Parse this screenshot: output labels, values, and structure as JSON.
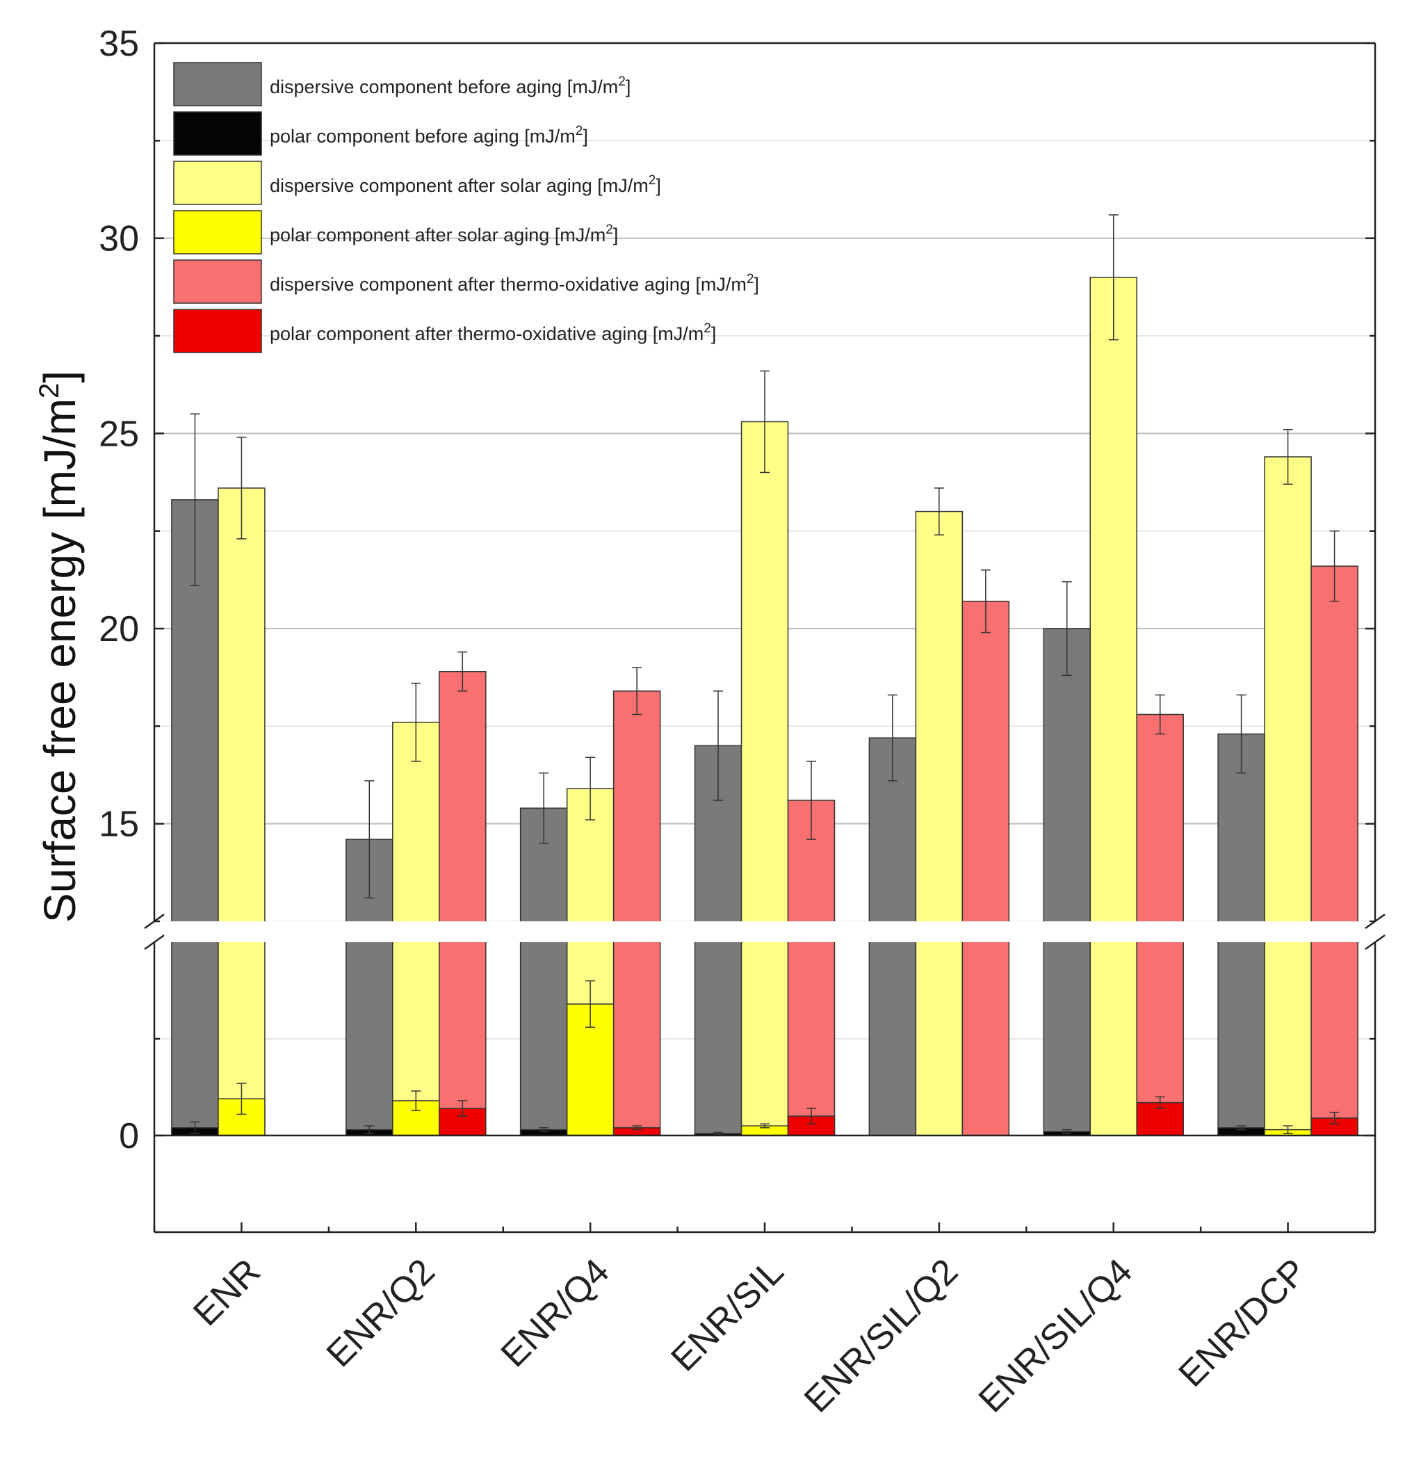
{
  "chart_data": {
    "type": "bar",
    "title": "",
    "xlabel": "",
    "ylabel": "Surface free energy [mJ/m",
    "ylabel_sup": "2",
    "ylabel_suffix": "]",
    "ylim": [
      -2.5,
      35
    ],
    "axis_break": {
      "from": 5,
      "to": 12.5
    },
    "yticks": [
      0,
      15,
      20,
      25,
      30,
      35
    ],
    "ytick_labels": [
      "0",
      "15",
      "20",
      "25",
      "30",
      "35"
    ],
    "grid": true,
    "categories": [
      "ENR",
      "ENR/Q2",
      "ENR/Q4",
      "ENR/SIL",
      "ENR/SIL/Q2",
      "ENR/SIL/Q4",
      "ENR/DCP"
    ],
    "legend_position": "top-left",
    "series": [
      {
        "name": "dispersive component before aging [mJ/m",
        "name_sup": "2",
        "name_suffix": "]",
        "color": "#7a7a7a",
        "values": [
          23.3,
          14.6,
          15.4,
          17.0,
          17.2,
          20.0,
          17.3
        ],
        "errors": [
          2.2,
          1.5,
          0.9,
          1.4,
          1.1,
          1.2,
          1.0
        ]
      },
      {
        "name": "polar component before aging [mJ/m",
        "name_sup": "2",
        "name_suffix": "]",
        "color": "#050505",
        "values": [
          0.2,
          0.15,
          0.15,
          0.05,
          0.0,
          0.1,
          0.2
        ],
        "errors": [
          0.15,
          0.1,
          0.05,
          0.03,
          0.0,
          0.05,
          0.05
        ]
      },
      {
        "name": "dispersive component after solar aging [mJ/m",
        "name_sup": "2",
        "name_suffix": "]",
        "color": "#ffff88",
        "values": [
          23.6,
          17.6,
          15.9,
          25.3,
          23.0,
          29.0,
          24.4
        ],
        "errors": [
          1.3,
          1.0,
          0.8,
          1.3,
          0.6,
          1.6,
          0.7
        ]
      },
      {
        "name": "polar component after solar aging [mJ/m",
        "name_sup": "2",
        "name_suffix": "]",
        "color": "#ffff00",
        "values": [
          0.95,
          0.9,
          3.4,
          0.25,
          0.0,
          0.0,
          0.15
        ],
        "errors": [
          0.4,
          0.25,
          0.6,
          0.05,
          0.0,
          0.0,
          0.1
        ]
      },
      {
        "name": "dispersive component after thermo-oxidative aging [mJ/m",
        "name_sup": "2",
        "name_suffix": "]",
        "color": "#f87070",
        "values": [
          null,
          18.9,
          18.4,
          15.6,
          20.7,
          17.8,
          21.6
        ],
        "errors": [
          null,
          0.5,
          0.6,
          1.0,
          0.8,
          0.5,
          0.9
        ]
      },
      {
        "name": "polar component after thermo-oxidative aging [mJ/m",
        "name_sup": "2",
        "name_suffix": "]",
        "color": "#ee0000",
        "values": [
          null,
          0.7,
          0.2,
          0.5,
          0.0,
          0.85,
          0.45
        ],
        "errors": [
          null,
          0.2,
          0.05,
          0.2,
          0.0,
          0.15,
          0.15
        ]
      }
    ]
  }
}
